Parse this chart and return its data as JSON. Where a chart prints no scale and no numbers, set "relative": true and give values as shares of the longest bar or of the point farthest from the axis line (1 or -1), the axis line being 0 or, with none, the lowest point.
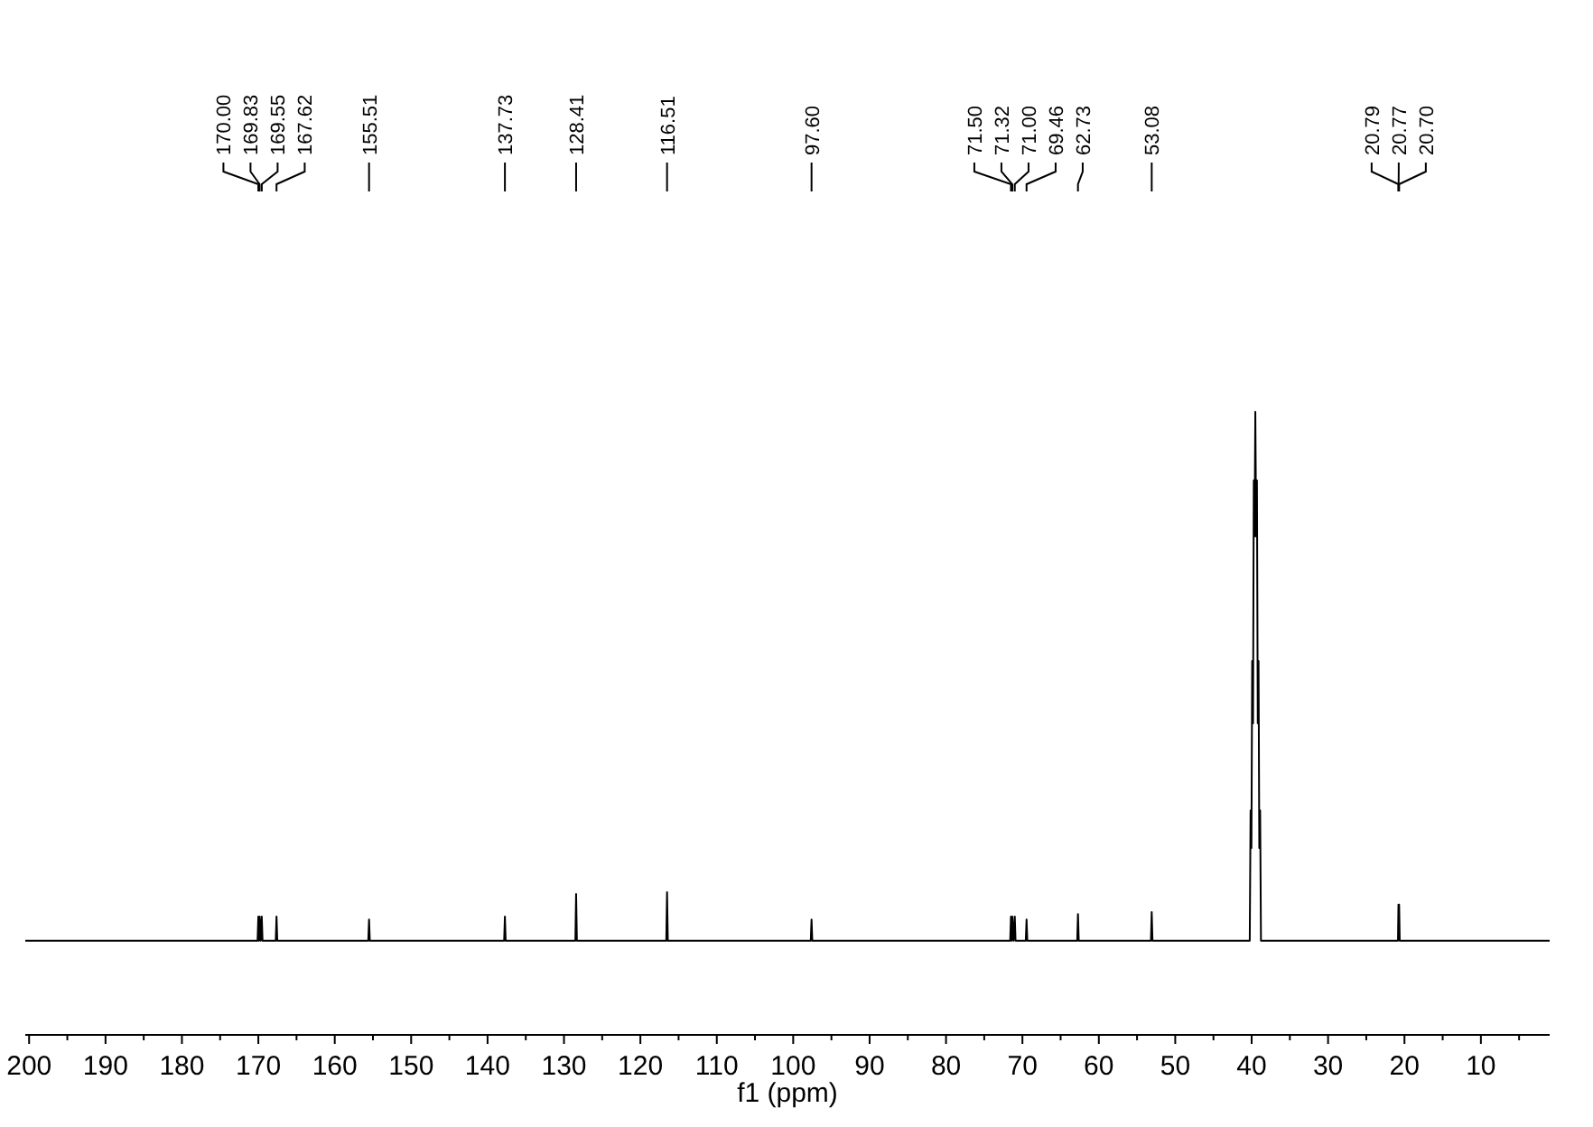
{
  "chart_data": {
    "type": "line",
    "relative": true,
    "xlabel": "f1 (ppm)",
    "xlim": [
      200.5,
      1
    ],
    "xticks": [
      200,
      {
        "value": 195,
        "label": null
      },
      190,
      {
        "value": 185,
        "label": null
      },
      180,
      {
        "value": 175,
        "label": null
      },
      170,
      {
        "value": 165,
        "label": null
      },
      160,
      {
        "value": 155,
        "label": null
      },
      150,
      {
        "value": 145,
        "label": null
      },
      140,
      {
        "value": 135,
        "label": null
      },
      130,
      {
        "value": 125,
        "label": null
      },
      120,
      {
        "value": 115,
        "label": null
      },
      110,
      {
        "value": 105,
        "label": null
      },
      100,
      {
        "value": 95,
        "label": null
      },
      90,
      {
        "value": 85,
        "label": null
      },
      80,
      {
        "value": 75,
        "label": null
      },
      70,
      {
        "value": 65,
        "label": null
      },
      60,
      {
        "value": 55,
        "label": null
      },
      50,
      {
        "value": 45,
        "label": null
      },
      40,
      {
        "value": 35,
        "label": null
      },
      30,
      {
        "value": 25,
        "label": null
      },
      20,
      {
        "value": 15,
        "label": null
      },
      10,
      {
        "value": 5,
        "label": null
      }
    ],
    "series": [
      {
        "color": "#000000",
        "x": [
          200.5,
          170.1,
          170.0,
          169.92,
          169.83,
          169.7,
          169.55,
          169.45,
          167.72,
          167.62,
          167.52,
          155.61,
          155.51,
          155.41,
          137.83,
          137.73,
          137.63,
          128.51,
          128.41,
          128.31,
          116.61,
          116.51,
          116.41,
          97.7,
          97.6,
          97.5,
          71.6,
          71.5,
          71.41,
          71.32,
          71.16,
          71.0,
          70.9,
          69.56,
          69.46,
          69.36,
          62.83,
          62.73,
          62.63,
          53.18,
          53.08,
          52.98,
          40.25,
          40.14,
          40.03,
          39.93,
          39.82,
          39.72,
          39.62,
          39.52,
          39.41,
          39.31,
          39.2,
          39.1,
          39.0,
          38.89,
          38.78,
          20.85,
          20.79,
          20.77,
          20.7,
          20.62,
          1
        ],
        "values": [
          0.151,
          0.151,
          0.19,
          0.151,
          0.19,
          0.151,
          0.19,
          0.151,
          0.151,
          0.19,
          0.151,
          0.151,
          0.185,
          0.151,
          0.151,
          0.19,
          0.151,
          0.151,
          0.226,
          0.151,
          0.151,
          0.229,
          0.151,
          0.151,
          0.185,
          0.151,
          0.151,
          0.19,
          0.151,
          0.19,
          0.151,
          0.19,
          0.151,
          0.151,
          0.185,
          0.151,
          0.151,
          0.194,
          0.151,
          0.151,
          0.197,
          0.151,
          0.151,
          0.36,
          0.3,
          0.6,
          0.5,
          0.89,
          0.8,
          1,
          0.8,
          0.89,
          0.5,
          0.6,
          0.3,
          0.36,
          0.151,
          0.151,
          0.209,
          0.209,
          0.209,
          0.151,
          0.151
        ]
      }
    ],
    "annotations": [
      {
        "text": "170.00",
        "x": 170.0
      },
      {
        "text": "169.83",
        "x": 169.83
      },
      {
        "text": "169.55",
        "x": 169.55
      },
      {
        "text": "167.62",
        "x": 167.62
      },
      {
        "text": "155.51",
        "x": 155.51
      },
      {
        "text": "137.73",
        "x": 137.73
      },
      {
        "text": "128.41",
        "x": 128.41
      },
      {
        "text": "116.51",
        "x": 116.51
      },
      {
        "text": "97.60",
        "x": 97.6
      },
      {
        "text": "71.50",
        "x": 71.5
      },
      {
        "text": "71.32",
        "x": 71.32
      },
      {
        "text": "71.00",
        "x": 71.0
      },
      {
        "text": "69.46",
        "x": 69.46
      },
      {
        "text": "62.73",
        "x": 62.73
      },
      {
        "text": "53.08",
        "x": 53.08
      },
      {
        "text": "20.79",
        "x": 20.79
      },
      {
        "text": "20.77",
        "x": 20.77
      },
      {
        "text": "20.70",
        "x": 20.7
      }
    ]
  }
}
